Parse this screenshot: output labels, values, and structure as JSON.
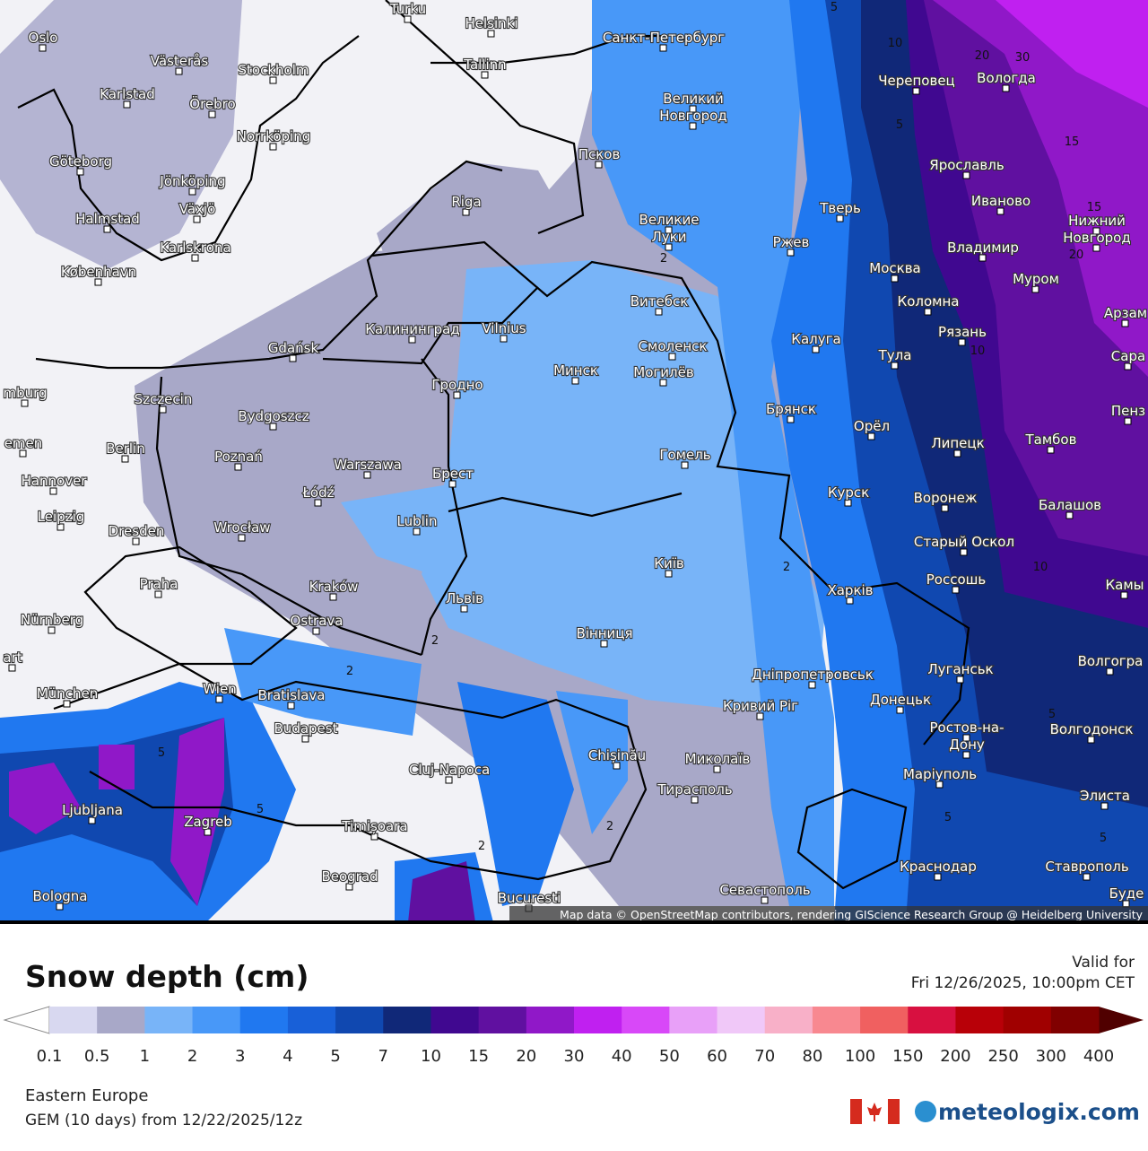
{
  "map": {
    "attribution": "Map data © OpenStreetMap contributors, rendering GIScience Research Group @ Heidelberg University",
    "labels": [
      "Oslo",
      "Västerås",
      "Stockholm",
      "Karlstad",
      "Örebro",
      "Norrköping",
      "Göteborg",
      "Jönköping",
      "Växjö",
      "Halmstad",
      "Karlskrona",
      "København",
      "Turku",
      "Helsinki",
      "Санкт-Петербург",
      "Tallinn",
      "Череповец",
      "Вологда",
      "Великий",
      "Новгород",
      "Псков",
      "Ярославль",
      "Riga",
      "Великие",
      "Луки",
      "Тверь",
      "Иваново",
      "Нижний",
      "Новгород",
      "Ржев",
      "Владимир",
      "Москва",
      "Муром",
      "Коломна",
      "Витебск",
      "Арзам",
      "Калининград",
      "Vilnius",
      "Рязань",
      "Смоленск",
      "Калуга",
      "Gdańsk",
      "Тула",
      "Сара",
      "Минск",
      "Могилёв",
      "Гродно",
      "Szczecin",
      "mburg",
      "Брянск",
      "Пенз",
      "Bydgoszcz",
      "Орёл",
      "Липецк",
      "Тамбов",
      "Berlin",
      "emen",
      "Poznań",
      "Гомель",
      "Warszawa",
      "Брест",
      "Hannover",
      "Łódź",
      "Курск",
      "Воронеж",
      "Балашов",
      "Leipzig",
      "Lublin",
      "Dresden",
      "Wrocław",
      "Старый Оскол",
      "Київ",
      "Praha",
      "Kraków",
      "Россошь",
      "Харків",
      "Камы",
      "Львів",
      "Nürnberg",
      "Ostrava",
      "Вінниця",
      "art",
      "Волгогра",
      "München",
      "Wien",
      "Bratislava",
      "Дніпропетровськ",
      "Луганськ",
      "Донецьк",
      "Кривий Ріг",
      "Budapest",
      "Ростов-на-",
      "Дону",
      "Волгодонск",
      "Chișinău",
      "Миколаїв",
      "Cluj-Napoca",
      "Маріуполь",
      "Тирасполь",
      "Элиста",
      "Ljubljana",
      "Zagreb",
      "Timișoara",
      "Краснодар",
      "Ставрополь",
      "Beograd",
      "Севастополь",
      "Bucuresti",
      "Bologna",
      "Буде"
    ],
    "contour_labels": [
      "5",
      "10",
      "20",
      "30",
      "15",
      "5",
      "15",
      "20",
      "2",
      "2",
      "2",
      "10",
      "10",
      "2",
      "5",
      "5",
      "2",
      "5",
      "2",
      "5",
      "5"
    ]
  },
  "legend": {
    "title": "Snow depth (cm)",
    "valid_label": "Valid for",
    "valid_time": "Fri 12/26/2025, 10:00pm CET",
    "ticks": [
      0.1,
      0.5,
      1,
      2,
      3,
      4,
      5,
      7,
      10,
      15,
      20,
      30,
      40,
      50,
      60,
      70,
      80,
      100,
      150,
      200,
      250,
      300,
      400
    ],
    "colors": [
      "#d8d8f0",
      "#a8a8c8",
      "#78b4f8",
      "#4898f8",
      "#2078f0",
      "#1860d8",
      "#1048b0",
      "#102878",
      "#400890",
      "#6010a0",
      "#9018c8",
      "#c020f0",
      "#d848f8",
      "#e8a0f8",
      "#f0c8f8",
      "#f8b0c8",
      "#f88890",
      "#f06060",
      "#d81040",
      "#b80008",
      "#a00000",
      "#800000"
    ]
  },
  "footer": {
    "region": "Eastern Europe",
    "model": "GEM (10 days) from 12/22/2025/12z",
    "brand": "meteologix.com"
  }
}
